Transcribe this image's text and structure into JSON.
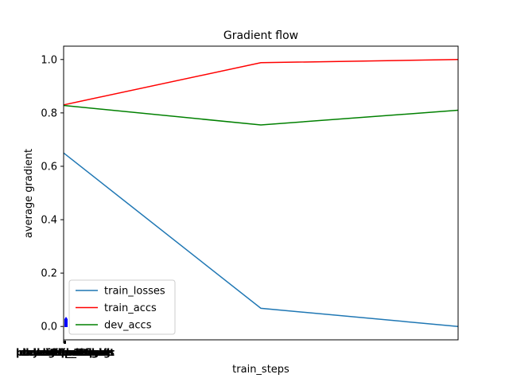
{
  "chart_data": {
    "type": "line",
    "title": "Gradient flow",
    "xlabel": "train_steps",
    "ylabel": "average gradient",
    "x": [
      0,
      1,
      2
    ],
    "ylim": [
      -0.05,
      1.05
    ],
    "yticks": [
      0.0,
      0.2,
      0.4,
      0.6,
      0.8,
      1.0
    ],
    "ytick_labels": [
      "0.0",
      "0.2",
      "0.4",
      "0.6",
      "0.8",
      "1.0"
    ],
    "grid": false,
    "legend_position": "lower-left",
    "series": [
      {
        "name": "train_losses",
        "color": "#1f77b4",
        "values": [
          0.65,
          0.068,
          0.0
        ]
      },
      {
        "name": "train_accs",
        "color": "#ff0000",
        "values": [
          0.83,
          0.988,
          1.0
        ]
      },
      {
        "name": "dev_accs",
        "color": "#008000",
        "values": [
          0.828,
          0.755,
          0.81
        ]
      }
    ],
    "overlapping_xtick_labels": [
      "bert.embeddings.word_embeddings.weight",
      "classifier.weight",
      "classifier.bias",
      "pooler.dense.bias",
      "layer.11.output",
      "step_1",
      "step_10"
    ],
    "marker_bar_color": "#0000ff"
  }
}
